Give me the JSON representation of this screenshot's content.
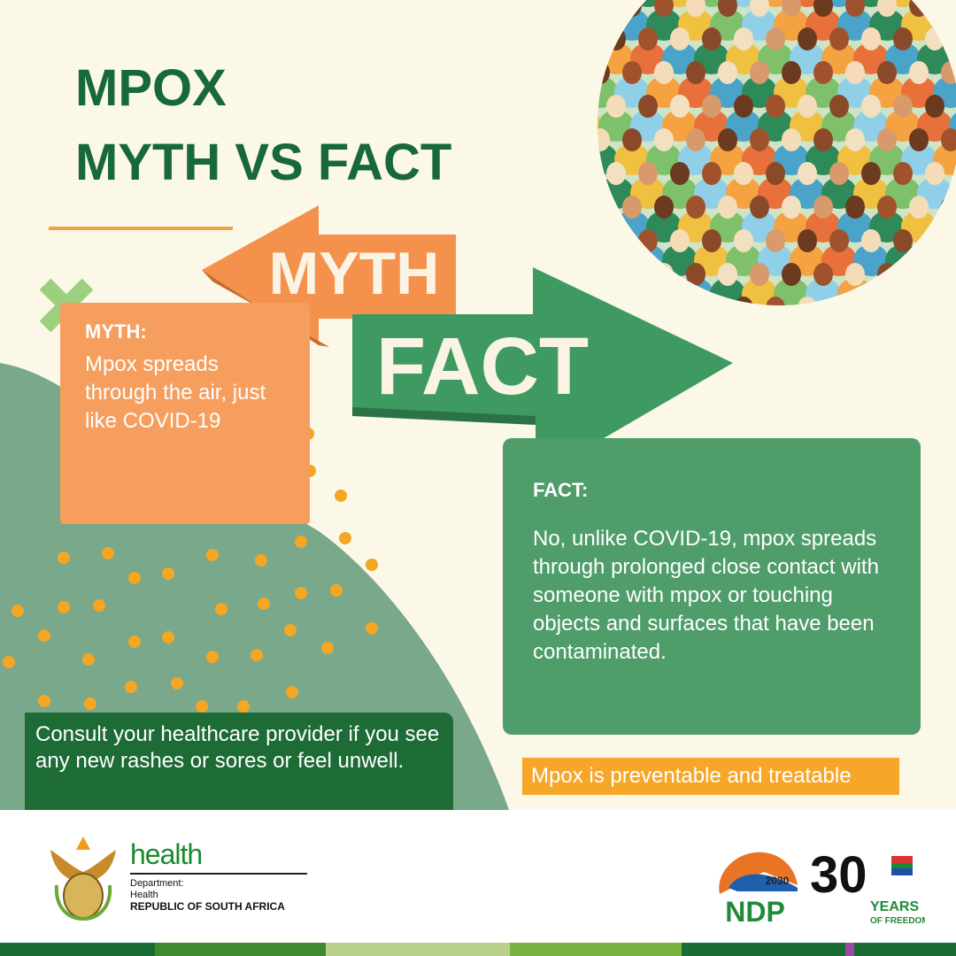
{
  "title": {
    "line1": "MPOX",
    "line2": "MYTH VS FACT"
  },
  "arrows": {
    "myth": "MYTH",
    "fact": "FACT"
  },
  "myth": {
    "label": "MYTH:",
    "text": "Mpox spreads through the air, just like COVID-19"
  },
  "fact": {
    "label": "FACT:",
    "text": "No, unlike COVID-19, mpox spreads through prolonged close contact with someone with mpox or touching objects and surfaces that have been contaminated."
  },
  "consult": "Consult your healthcare provider if you see any new rashes or sores or feel unwell.",
  "preventable": "Mpox is preventable and treatable",
  "footer": {
    "health": "health",
    "dept1": "Department:",
    "dept2": "Health",
    "country": "REPUBLIC OF SOUTH AFRICA",
    "ndp": "NDP",
    "ndp_year": "2030",
    "years_num": "30",
    "years_text": "YEARS",
    "freedom": "OF FREEDOM"
  },
  "colors": {
    "green_dark": "#17683a",
    "orange": "#f59e5d",
    "fact_green": "#4f9d6b",
    "amber": "#f6a72a"
  }
}
